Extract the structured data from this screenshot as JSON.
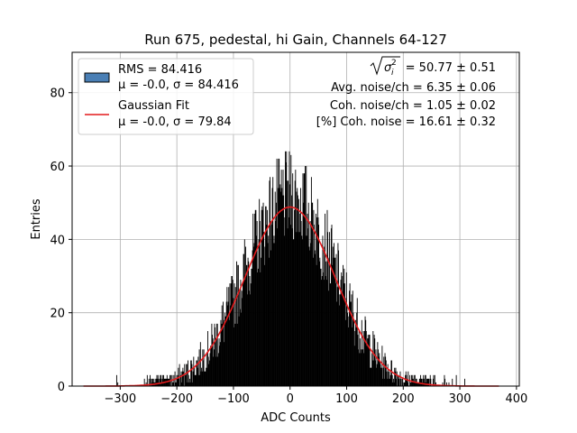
{
  "chart_data": {
    "type": "bar",
    "title": "Run 675, pedestal, hi Gain, Channels 64-127",
    "xlabel": "ADC Counts",
    "ylabel": "Entries",
    "xlim": [
      -385,
      405
    ],
    "ylim": [
      0,
      91
    ],
    "xticks": [
      -300,
      -200,
      -100,
      0,
      100,
      200,
      300,
      400
    ],
    "xtick_labels": [
      "−300",
      "−200",
      "−100",
      "0",
      "100",
      "200",
      "300",
      "400"
    ],
    "yticks": [
      0,
      20,
      40,
      60,
      80
    ],
    "ytick_labels": [
      "0",
      "20",
      "40",
      "60",
      "80"
    ],
    "grid": true,
    "legend_position": "top-left",
    "histogram": {
      "name": "RMS = 84.416",
      "stats_label": "μ = -0.0, σ = 84.416",
      "color": "#000000",
      "legend_color": "#4a7fb5",
      "range": [
        -365,
        370
      ],
      "bin_width": 1,
      "peak_entries": 65,
      "rms": 84.416,
      "mean": 0.0
    },
    "fit": {
      "name": "Gaussian Fit",
      "stats_label": "μ = -0.0, σ = 79.84",
      "color": "#e41a1c",
      "mu": 0.0,
      "sigma": 79.84,
      "amplitude": 48.8,
      "range": [
        -365,
        370
      ]
    },
    "annotations": [
      {
        "prefix": "",
        "value": " = 50.77 ± 0.51",
        "radical": true
      },
      {
        "prefix": "",
        "value": "Avg. noise/ch = 6.35 ± 0.06",
        "radical": false
      },
      {
        "prefix": "",
        "value": "Coh. noise/ch = 1.05 ± 0.02",
        "radical": false
      },
      {
        "prefix": "",
        "value": "[%] Coh. noise = 16.61 ± 0.32",
        "radical": false
      }
    ]
  }
}
